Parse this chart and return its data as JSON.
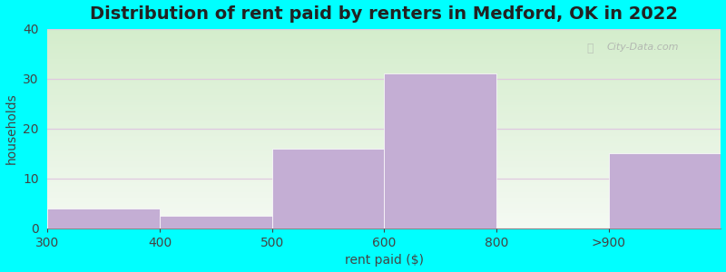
{
  "title": "Distribution of rent paid by renters in Medford, OK in 2022",
  "xlabel": "rent paid ($)",
  "ylabel": "households",
  "categories": [
    "300",
    "400",
    "500",
    "600",
    "800",
    ">900"
  ],
  "values": [
    4,
    2.5,
    16,
    31,
    0,
    15
  ],
  "bar_color": "#c4aed4",
  "bar_edgecolor": "#c4aed4",
  "ylim": [
    0,
    40
  ],
  "yticks": [
    0,
    10,
    20,
    30,
    40
  ],
  "background_color": "#00FFFF",
  "plot_bg_color_top": "#d4edcc",
  "plot_bg_color_bottom": "#f0f5ee",
  "grid_color": "#e0c8e0",
  "title_fontsize": 14,
  "axis_label_fontsize": 10,
  "tick_fontsize": 10,
  "watermark": "City-Data.com"
}
